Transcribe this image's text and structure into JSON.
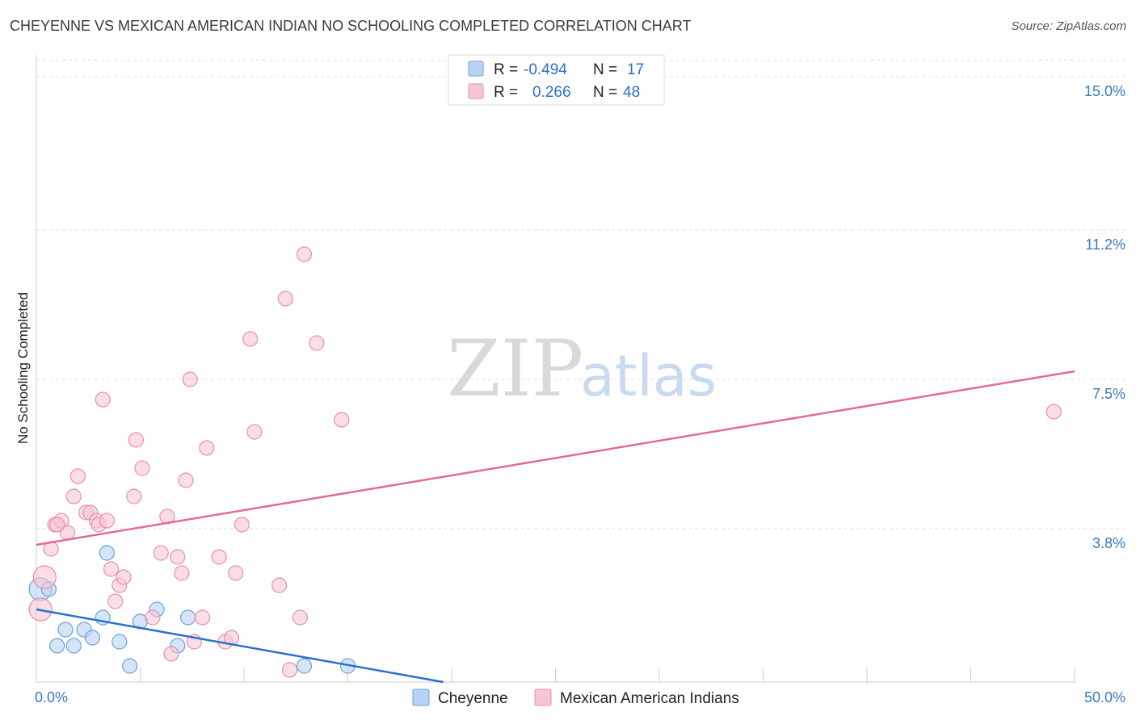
{
  "header": {
    "title": "CHEYENNE VS MEXICAN AMERICAN INDIAN NO SCHOOLING COMPLETED CORRELATION CHART",
    "source": "Source: ZipAtlas.com"
  },
  "watermark": {
    "zip": "ZIP",
    "atlas": "atlas"
  },
  "colors": {
    "cheyenne_fill": "#b8d3f5",
    "cheyenne_stroke": "#6f9fd8",
    "cheyenne_line": "#2b6fcf",
    "mexican_fill": "#f7c6d4",
    "mexican_stroke": "#e690ab",
    "mexican_line": "#e26a94",
    "grid": "#dddddd",
    "tick_text": "#3b78c4"
  },
  "legend_box": {
    "rows": [
      {
        "r_label": "R =",
        "r_value": "-0.494",
        "n_label": "N =",
        "n_value": "17"
      },
      {
        "r_label": "R =",
        "r_value": "0.266",
        "n_label": "N =",
        "n_value": "48"
      }
    ]
  },
  "chart_data": {
    "type": "scatter",
    "ylabel": "No Schooling Completed",
    "xlim": [
      0,
      50
    ],
    "ylim": [
      0,
      15.4
    ],
    "x_tick_labels": [
      "0.0%",
      "50.0%"
    ],
    "y_ticks": [
      {
        "value": 3.8,
        "label": "3.8%"
      },
      {
        "value": 7.5,
        "label": "7.5%"
      },
      {
        "value": 11.2,
        "label": "11.2%"
      },
      {
        "value": 15.0,
        "label": "15.0%"
      }
    ],
    "legend_position": "bottom",
    "grid": "horizontal-dashed",
    "series": [
      {
        "name": "Cheyenne",
        "points": [
          [
            0.2,
            2.3
          ],
          [
            0.6,
            2.3
          ],
          [
            1.0,
            0.9
          ],
          [
            1.4,
            1.3
          ],
          [
            1.8,
            0.9
          ],
          [
            2.3,
            1.3
          ],
          [
            2.7,
            1.1
          ],
          [
            3.2,
            1.6
          ],
          [
            3.4,
            3.2
          ],
          [
            4.0,
            1.0
          ],
          [
            4.5,
            0.4
          ],
          [
            5.0,
            1.5
          ],
          [
            5.8,
            1.8
          ],
          [
            6.8,
            0.9
          ],
          [
            7.3,
            1.6
          ],
          [
            12.9,
            0.4
          ],
          [
            15.0,
            0.4
          ]
        ],
        "trend": {
          "x": [
            0,
            19.6
          ],
          "y": [
            1.8,
            0.0
          ]
        }
      },
      {
        "name": "Mexican American Indians",
        "points": [
          [
            0.2,
            1.8
          ],
          [
            0.4,
            2.6
          ],
          [
            0.7,
            3.3
          ],
          [
            0.9,
            3.9
          ],
          [
            1.2,
            4.0
          ],
          [
            1.5,
            3.7
          ],
          [
            1.8,
            4.6
          ],
          [
            2.0,
            5.1
          ],
          [
            2.4,
            4.2
          ],
          [
            2.6,
            4.2
          ],
          [
            2.9,
            4.0
          ],
          [
            3.0,
            3.9
          ],
          [
            3.2,
            7.0
          ],
          [
            3.4,
            4.0
          ],
          [
            3.6,
            2.8
          ],
          [
            3.8,
            2.0
          ],
          [
            4.0,
            2.4
          ],
          [
            4.2,
            2.6
          ],
          [
            4.7,
            4.6
          ],
          [
            4.8,
            6.0
          ],
          [
            5.1,
            5.3
          ],
          [
            5.6,
            1.6
          ],
          [
            6.0,
            3.2
          ],
          [
            6.3,
            4.1
          ],
          [
            6.5,
            0.7
          ],
          [
            6.8,
            3.1
          ],
          [
            7.0,
            2.7
          ],
          [
            7.2,
            5.0
          ],
          [
            7.4,
            7.5
          ],
          [
            7.6,
            1.0
          ],
          [
            8.0,
            1.6
          ],
          [
            8.2,
            5.8
          ],
          [
            8.8,
            3.1
          ],
          [
            9.1,
            1.0
          ],
          [
            9.4,
            1.1
          ],
          [
            9.6,
            2.7
          ],
          [
            9.9,
            3.9
          ],
          [
            10.3,
            8.5
          ],
          [
            10.5,
            6.2
          ],
          [
            11.7,
            2.4
          ],
          [
            12.0,
            9.5
          ],
          [
            12.2,
            0.3
          ],
          [
            12.7,
            1.6
          ],
          [
            12.9,
            10.6
          ],
          [
            13.5,
            8.4
          ],
          [
            14.7,
            6.5
          ],
          [
            49.0,
            6.7
          ],
          [
            1.0,
            3.9
          ]
        ],
        "trend": {
          "x": [
            0,
            50
          ],
          "y": [
            3.4,
            7.7
          ]
        }
      }
    ]
  }
}
